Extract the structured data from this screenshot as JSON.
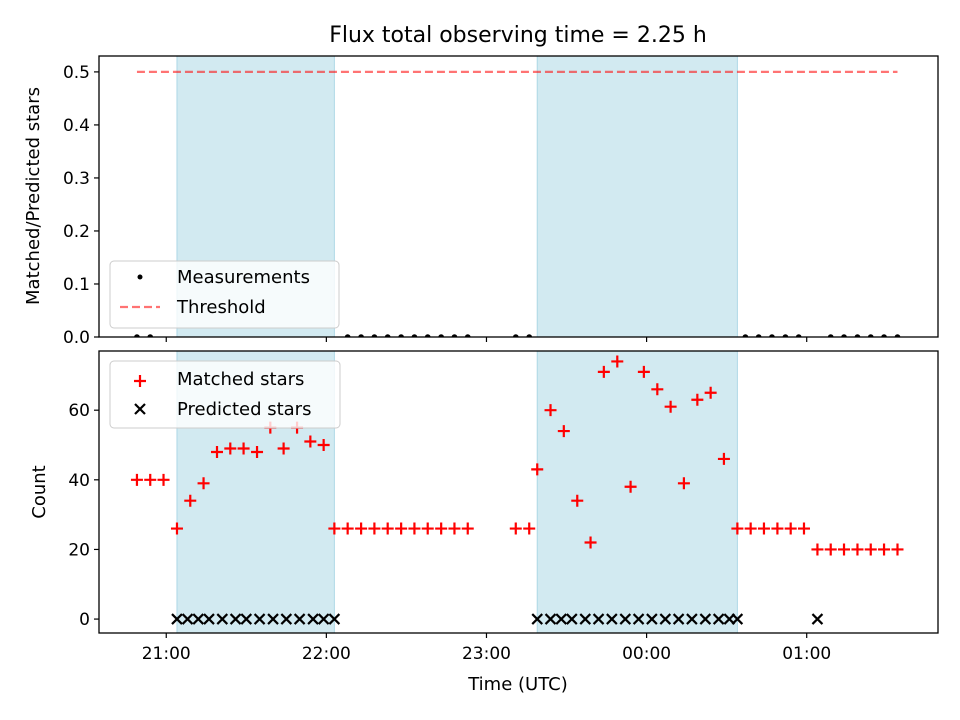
{
  "chart_data": {
    "title": "Flux total observing time = 2.25 h",
    "x_axis": {
      "label": "Time (UTC)",
      "ticks": [
        {
          "t": 21.0,
          "label": "21:00"
        },
        {
          "t": 22.0,
          "label": "22:00"
        },
        {
          "t": 23.0,
          "label": "23:00"
        },
        {
          "t": 24.0,
          "label": "00:00"
        },
        {
          "t": 25.0,
          "label": "01:00"
        }
      ],
      "range": [
        20.58,
        25.82
      ]
    },
    "shaded_intervals": [
      [
        21.067,
        22.05
      ],
      [
        23.317,
        24.567
      ]
    ],
    "shade_color": "#add8e6",
    "top": {
      "type": "scatter",
      "ylabel": "Matched/Predicted stars",
      "ylim": [
        0,
        0.53
      ],
      "yticks": [
        {
          "v": 0.0,
          "label": "0.0"
        },
        {
          "v": 0.1,
          "label": "0.1"
        },
        {
          "v": 0.2,
          "label": "0.2"
        },
        {
          "v": 0.3,
          "label": "0.3"
        },
        {
          "v": 0.4,
          "label": "0.4"
        },
        {
          "v": 0.5,
          "label": "0.5"
        }
      ],
      "measurements": {
        "name": "Measurements",
        "color": "#000000",
        "x": [
          20.817,
          20.9,
          22.133,
          22.217,
          22.3,
          22.383,
          22.467,
          22.55,
          22.633,
          22.717,
          22.8,
          22.883,
          23.183,
          23.267,
          24.617,
          24.7,
          24.783,
          24.867,
          24.95,
          25.15,
          25.233,
          25.317,
          25.4,
          25.483,
          25.567
        ],
        "y": [
          0,
          0,
          0,
          0,
          0,
          0,
          0,
          0,
          0,
          0,
          0,
          0,
          0,
          0,
          0,
          0,
          0,
          0,
          0,
          0,
          0,
          0,
          0,
          0,
          0
        ]
      },
      "threshold": {
        "name": "Threshold",
        "value": 0.5,
        "x_range": [
          20.817,
          25.567
        ],
        "color": "#ff0000"
      },
      "legend": "lower-left"
    },
    "bottom": {
      "type": "scatter",
      "ylabel": "Count",
      "ylim": [
        -4,
        77
      ],
      "yticks": [
        {
          "v": 0,
          "label": "0"
        },
        {
          "v": 20,
          "label": "20"
        },
        {
          "v": 40,
          "label": "40"
        },
        {
          "v": 60,
          "label": "60"
        }
      ],
      "matched": {
        "name": "Matched stars",
        "color": "#ff0000",
        "x": [
          20.817,
          20.9,
          20.983,
          21.067,
          21.15,
          21.233,
          21.317,
          21.4,
          21.483,
          21.567,
          21.65,
          21.733,
          21.817,
          21.9,
          21.983,
          22.05,
          22.133,
          22.217,
          22.3,
          22.383,
          22.467,
          22.55,
          22.633,
          22.717,
          22.8,
          22.883,
          23.183,
          23.267,
          23.317,
          23.4,
          23.483,
          23.567,
          23.65,
          23.733,
          23.817,
          23.9,
          23.983,
          24.067,
          24.15,
          24.233,
          24.317,
          24.4,
          24.483,
          24.567,
          24.65,
          24.733,
          24.817,
          24.9,
          24.983,
          25.067,
          25.15,
          25.233,
          25.317,
          25.4,
          25.483,
          25.567
        ],
        "y": [
          40,
          40,
          40,
          26,
          34,
          39,
          48,
          49,
          49,
          48,
          55,
          49,
          55,
          51,
          50,
          26,
          26,
          26,
          26,
          26,
          26,
          26,
          26,
          26,
          26,
          26,
          26,
          26,
          43,
          60,
          54,
          34,
          22,
          71,
          74,
          38,
          71,
          66,
          61,
          39,
          63,
          65,
          46,
          26,
          26,
          26,
          26,
          26,
          26,
          20,
          20,
          20,
          20,
          20,
          20,
          20
        ]
      },
      "predicted": {
        "name": "Predicted stars",
        "color": "#000000",
        "x": [
          21.067,
          21.133,
          21.2,
          21.267,
          21.35,
          21.433,
          21.5,
          21.583,
          21.667,
          21.75,
          21.833,
          21.917,
          21.983,
          22.05,
          23.317,
          23.4,
          23.467,
          23.533,
          23.617,
          23.7,
          23.783,
          23.867,
          23.95,
          24.033,
          24.117,
          24.2,
          24.283,
          24.367,
          24.45,
          24.517,
          24.567,
          25.067
        ],
        "y": [
          0,
          0,
          0,
          0,
          0,
          0,
          0,
          0,
          0,
          0,
          0,
          0,
          0,
          0,
          0,
          0,
          0,
          0,
          0,
          0,
          0,
          0,
          0,
          0,
          0,
          0,
          0,
          0,
          0,
          0,
          0,
          0
        ]
      },
      "legend": "upper-left"
    }
  }
}
